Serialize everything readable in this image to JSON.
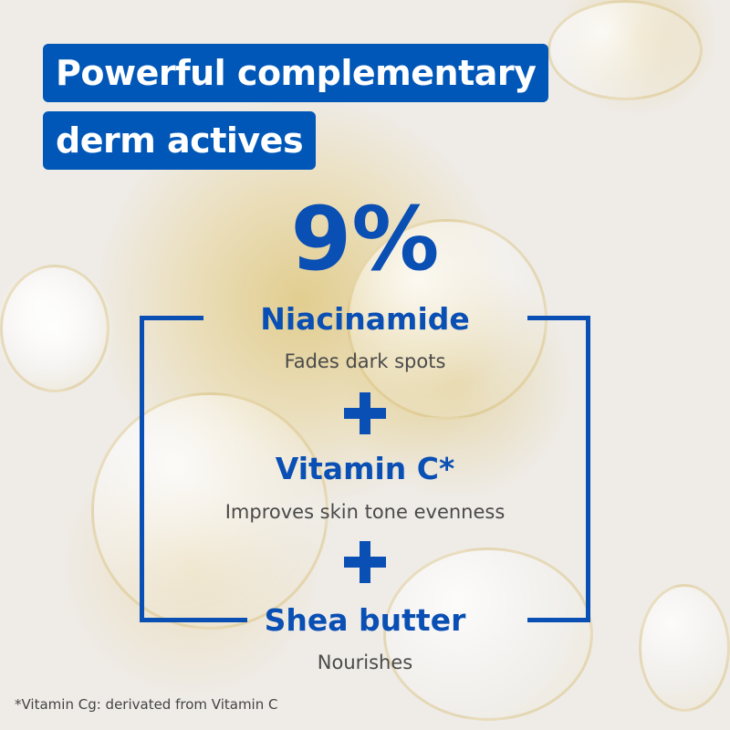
{
  "headline": {
    "line1": "Powerful complementary",
    "line2": "derm actives"
  },
  "percentage": "9%",
  "ingredients": [
    {
      "name": "Niacinamide",
      "benefit": "Fades dark spots"
    },
    {
      "name": "Vitamin C*",
      "benefit": "Improves skin tone evenness"
    },
    {
      "name": "Shea butter",
      "benefit": "Nourishes"
    }
  ],
  "footnote": "*Vitamin Cg: derivated from Vitamin C",
  "colors": {
    "brand_blue": "#0057b8",
    "text_grey": "#4a4a4a",
    "background": "#efece8"
  },
  "icons": [
    "plus-icon",
    "plus-icon"
  ]
}
